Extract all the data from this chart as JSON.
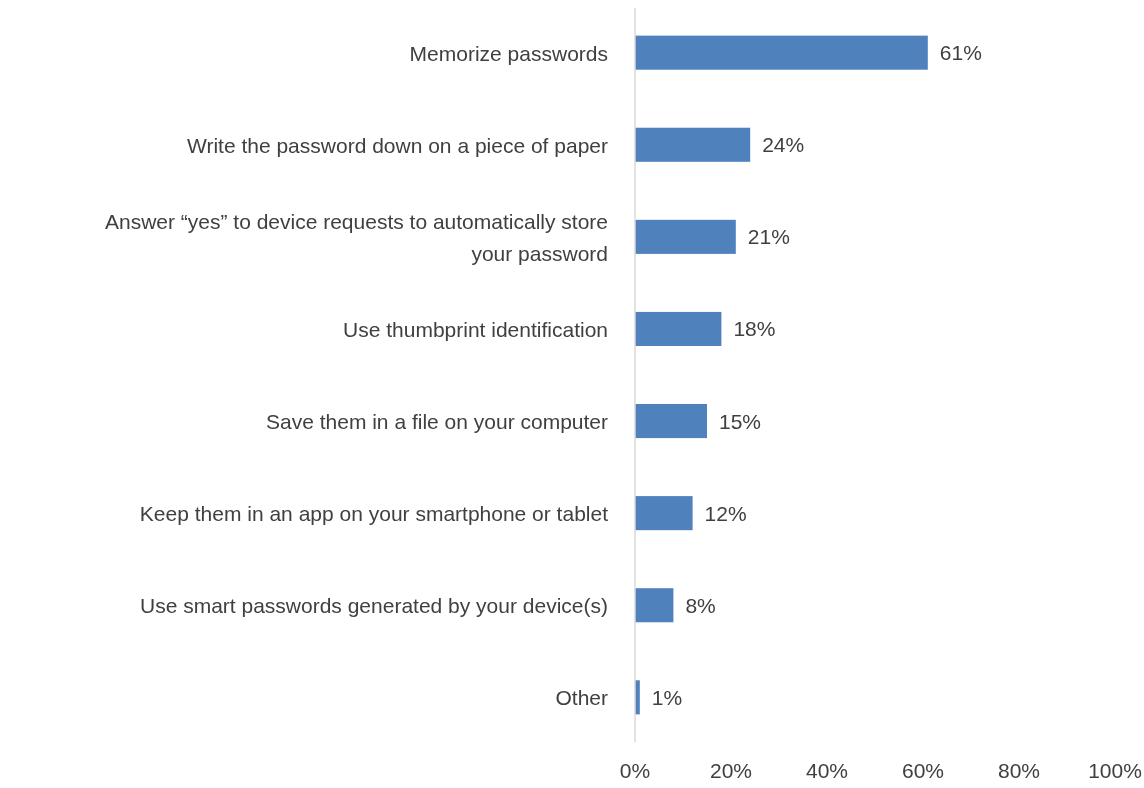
{
  "chart_data": {
    "type": "bar",
    "orientation": "horizontal",
    "categories": [
      "Memorize passwords",
      "Write the password down on a piece of paper",
      "Answer “yes” to device requests to automatically store your password",
      "Use thumbprint identification",
      "Save them in a file on your computer",
      "Keep them in an app on your smartphone or tablet",
      "Use smart passwords generated by your device(s)",
      "Other"
    ],
    "values": [
      61,
      24,
      21,
      18,
      15,
      12,
      8,
      1
    ],
    "value_labels": [
      "61%",
      "24%",
      "21%",
      "18%",
      "15%",
      "12%",
      "8%",
      "1%"
    ],
    "color": "#4f81bd",
    "xlim": [
      0,
      100
    ],
    "xticks": [
      {
        "value": 0,
        "label": "0%"
      },
      {
        "value": 20,
        "label": "20%"
      },
      {
        "value": 40,
        "label": "40%"
      },
      {
        "value": 60,
        "label": "60%"
      },
      {
        "value": 80,
        "label": "80%"
      },
      {
        "value": 100,
        "label": "100%"
      }
    ],
    "grid": false
  }
}
